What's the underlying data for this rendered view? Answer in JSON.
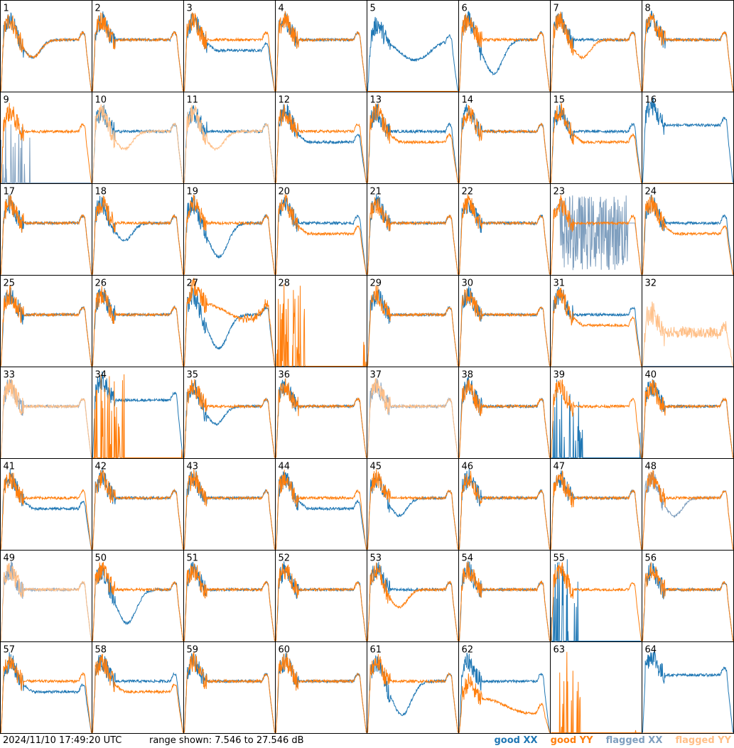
{
  "footer": {
    "timestamp": "2024/11/10 17:49:20 UTC",
    "range_text": "range shown: 7.546 to 27.546 dB",
    "legend": {
      "good_xx": "good XX",
      "good_yy": "good YY",
      "flagged_xx": "flagged XX",
      "flagged_yy": "flagged YY"
    }
  },
  "colors": {
    "good_xx": "#1f77b4",
    "good_yy": "#ff7f0e",
    "flagged_xx": "#7f9fbf",
    "flagged_yy": "#ffbf87"
  },
  "chart_data": {
    "type": "line",
    "layout": "small-multiples 8x8",
    "ylim": [
      7.546,
      27.546
    ],
    "y_unit": "dB",
    "panels": [
      {
        "id": "1",
        "xx": "good",
        "yy": "good",
        "xxShape": "dip",
        "yyShape": "dip"
      },
      {
        "id": "2",
        "xx": "good",
        "yy": "good",
        "xxShape": "normal",
        "yyShape": "normal"
      },
      {
        "id": "3",
        "xx": "good",
        "yy": "good",
        "xxShape": "lowmid",
        "yyShape": "normal"
      },
      {
        "id": "4",
        "xx": "good",
        "yy": "good",
        "xxShape": "normal",
        "yyShape": "normal"
      },
      {
        "id": "5",
        "xx": "good",
        "yy": "good",
        "xxShape": "wave",
        "yyShape": "zero"
      },
      {
        "id": "6",
        "xx": "good",
        "yy": "good",
        "xxShape": "deepdip",
        "yyShape": "normal"
      },
      {
        "id": "7",
        "xx": "good",
        "yy": "good",
        "xxShape": "normal",
        "yyShape": "dip"
      },
      {
        "id": "8",
        "xx": "good",
        "yy": "good",
        "xxShape": "normal",
        "yyShape": "normal"
      },
      {
        "id": "9",
        "xx": "flagged",
        "yy": "good",
        "xxShape": "spikes",
        "yyShape": "normal"
      },
      {
        "id": "10",
        "xx": "good",
        "yy": "flagged",
        "xxShape": "normal",
        "yyShape": "dip"
      },
      {
        "id": "11",
        "xx": "good",
        "yy": "flagged",
        "xxShape": "normal",
        "yyShape": "dip"
      },
      {
        "id": "12",
        "xx": "good",
        "yy": "good",
        "xxShape": "lowmid",
        "yyShape": "normal"
      },
      {
        "id": "13",
        "xx": "good",
        "yy": "good",
        "xxShape": "normal",
        "yyShape": "lowmid"
      },
      {
        "id": "14",
        "xx": "good",
        "yy": "good",
        "xxShape": "normal",
        "yyShape": "normal"
      },
      {
        "id": "15",
        "xx": "good",
        "yy": "good",
        "xxShape": "normal",
        "yyShape": "lowmid"
      },
      {
        "id": "16",
        "xx": "good",
        "yy": "flagged",
        "xxShape": "high",
        "yyShape": "zero"
      },
      {
        "id": "17",
        "xx": "good",
        "yy": "good",
        "xxShape": "normal",
        "yyShape": "normal"
      },
      {
        "id": "18",
        "xx": "good",
        "yy": "good",
        "xxShape": "dip",
        "yyShape": "normal"
      },
      {
        "id": "19",
        "xx": "good",
        "yy": "good",
        "xxShape": "deepdip",
        "yyShape": "normal"
      },
      {
        "id": "20",
        "xx": "good",
        "yy": "good",
        "xxShape": "normal",
        "yyShape": "lowmid"
      },
      {
        "id": "21",
        "xx": "good",
        "yy": "good",
        "xxShape": "normal",
        "yyShape": "normal"
      },
      {
        "id": "22",
        "xx": "good",
        "yy": "good",
        "xxShape": "normal",
        "yyShape": "normal"
      },
      {
        "id": "23",
        "xx": "flagged",
        "yy": "good",
        "xxShape": "noise",
        "yyShape": "normal"
      },
      {
        "id": "24",
        "xx": "good",
        "yy": "good",
        "xxShape": "normal",
        "yyShape": "lowmid"
      },
      {
        "id": "25",
        "xx": "good",
        "yy": "good",
        "xxShape": "normal",
        "yyShape": "normal"
      },
      {
        "id": "26",
        "xx": "good",
        "yy": "good",
        "xxShape": "normal",
        "yyShape": "normal"
      },
      {
        "id": "27",
        "xx": "good",
        "yy": "good",
        "xxShape": "deepdip",
        "yyShape": "highwave"
      },
      {
        "id": "28",
        "xx": "good",
        "yy": "good",
        "xxShape": "zero",
        "yyShape": "spikes"
      },
      {
        "id": "29",
        "xx": "good",
        "yy": "good",
        "xxShape": "normal",
        "yyShape": "normal"
      },
      {
        "id": "30",
        "xx": "good",
        "yy": "good",
        "xxShape": "normal",
        "yyShape": "normal"
      },
      {
        "id": "31",
        "xx": "good",
        "yy": "good",
        "xxShape": "normal",
        "yyShape": "lowmid"
      },
      {
        "id": "32",
        "xx": "flagged",
        "yy": "flagged",
        "xxShape": "zero",
        "yyShape": "noisy"
      },
      {
        "id": "33",
        "xx": "flagged",
        "yy": "flagged",
        "xxShape": "normal",
        "yyShape": "normal"
      },
      {
        "id": "34",
        "xx": "good",
        "yy": "good",
        "xxShape": "high",
        "yyShape": "spikes"
      },
      {
        "id": "35",
        "xx": "good",
        "yy": "good",
        "xxShape": "dip",
        "yyShape": "normal"
      },
      {
        "id": "36",
        "xx": "good",
        "yy": "good",
        "xxShape": "normal",
        "yyShape": "normal"
      },
      {
        "id": "37",
        "xx": "flagged",
        "yy": "flagged",
        "xxShape": "normal",
        "yyShape": "normal"
      },
      {
        "id": "38",
        "xx": "good",
        "yy": "good",
        "xxShape": "normal",
        "yyShape": "normal"
      },
      {
        "id": "39",
        "xx": "good",
        "yy": "good",
        "xxShape": "spikes",
        "yyShape": "normal"
      },
      {
        "id": "40",
        "xx": "good",
        "yy": "good",
        "xxShape": "normal",
        "yyShape": "normal"
      },
      {
        "id": "41",
        "xx": "good",
        "yy": "good",
        "xxShape": "lowmid",
        "yyShape": "normal"
      },
      {
        "id": "42",
        "xx": "good",
        "yy": "good",
        "xxShape": "normal",
        "yyShape": "normal"
      },
      {
        "id": "43",
        "xx": "good",
        "yy": "good",
        "xxShape": "normal",
        "yyShape": "normal"
      },
      {
        "id": "44",
        "xx": "good",
        "yy": "good",
        "xxShape": "lowmid",
        "yyShape": "normal"
      },
      {
        "id": "45",
        "xx": "good",
        "yy": "good",
        "xxShape": "dip",
        "yyShape": "normal"
      },
      {
        "id": "46",
        "xx": "good",
        "yy": "good",
        "xxShape": "normal",
        "yyShape": "normal"
      },
      {
        "id": "47",
        "xx": "good",
        "yy": "good",
        "xxShape": "normal",
        "yyShape": "normal"
      },
      {
        "id": "48",
        "xx": "flagged",
        "yy": "good",
        "xxShape": "dip",
        "yyShape": "normal"
      },
      {
        "id": "49",
        "xx": "flagged",
        "yy": "flagged",
        "xxShape": "normal",
        "yyShape": "normal"
      },
      {
        "id": "50",
        "xx": "good",
        "yy": "good",
        "xxShape": "deepdip",
        "yyShape": "normal"
      },
      {
        "id": "51",
        "xx": "good",
        "yy": "good",
        "xxShape": "normal",
        "yyShape": "normal"
      },
      {
        "id": "52",
        "xx": "good",
        "yy": "good",
        "xxShape": "normal",
        "yyShape": "normal"
      },
      {
        "id": "53",
        "xx": "good",
        "yy": "good",
        "xxShape": "normal",
        "yyShape": "dip"
      },
      {
        "id": "54",
        "xx": "good",
        "yy": "good",
        "xxShape": "normal",
        "yyShape": "normal"
      },
      {
        "id": "55",
        "xx": "good",
        "yy": "good",
        "xxShape": "spikes",
        "yyShape": "normal"
      },
      {
        "id": "56",
        "xx": "good",
        "yy": "good",
        "xxShape": "normal",
        "yyShape": "normal"
      },
      {
        "id": "57",
        "xx": "good",
        "yy": "good",
        "xxShape": "lowmid",
        "yyShape": "normal"
      },
      {
        "id": "58",
        "xx": "good",
        "yy": "good",
        "xxShape": "normal",
        "yyShape": "lowmid"
      },
      {
        "id": "59",
        "xx": "good",
        "yy": "good",
        "xxShape": "normal",
        "yyShape": "normal"
      },
      {
        "id": "60",
        "xx": "good",
        "yy": "good",
        "xxShape": "normal",
        "yyShape": "normal"
      },
      {
        "id": "61",
        "xx": "good",
        "yy": "good",
        "xxShape": "deepdip",
        "yyShape": "normal"
      },
      {
        "id": "62",
        "xx": "good",
        "yy": "good",
        "xxShape": "normal",
        "yyShape": "lowwave"
      },
      {
        "id": "63",
        "xx": "good",
        "yy": "good",
        "xxShape": "zero",
        "yyShape": "spikes"
      },
      {
        "id": "64",
        "xx": "good",
        "yy": "flagged",
        "xxShape": "high",
        "yyShape": "zero"
      }
    ]
  }
}
